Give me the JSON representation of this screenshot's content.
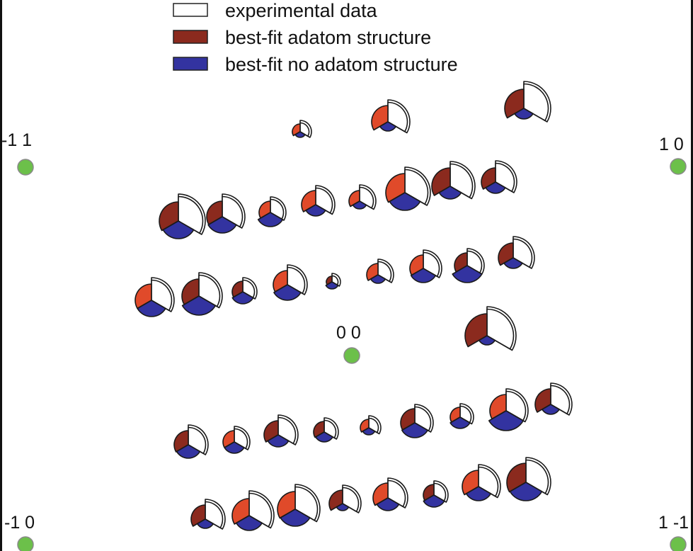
{
  "legend": {
    "items": [
      {
        "label": "experimental data",
        "color": "#ffffff"
      },
      {
        "label": "best-fit adatom structure",
        "color": "#8b2a1e"
      },
      {
        "label": "best-fit no adatom structure",
        "color": "#3333a0"
      }
    ]
  },
  "colors": {
    "integer_spot": "#6cc04a",
    "integer_spot_stroke": "#8a8a8a",
    "adatom_light": "#e04a2a",
    "adatom_dark": "#8b2a1e",
    "no_adatom": "#3333a0",
    "experimental": "#ffffff"
  },
  "integer_spots": [
    {
      "label": "-1 1"
    },
    {
      "label": "1 0"
    },
    {
      "label": "0 0"
    },
    {
      "label": "-1 0"
    },
    {
      "label": "1 -1"
    }
  ]
}
